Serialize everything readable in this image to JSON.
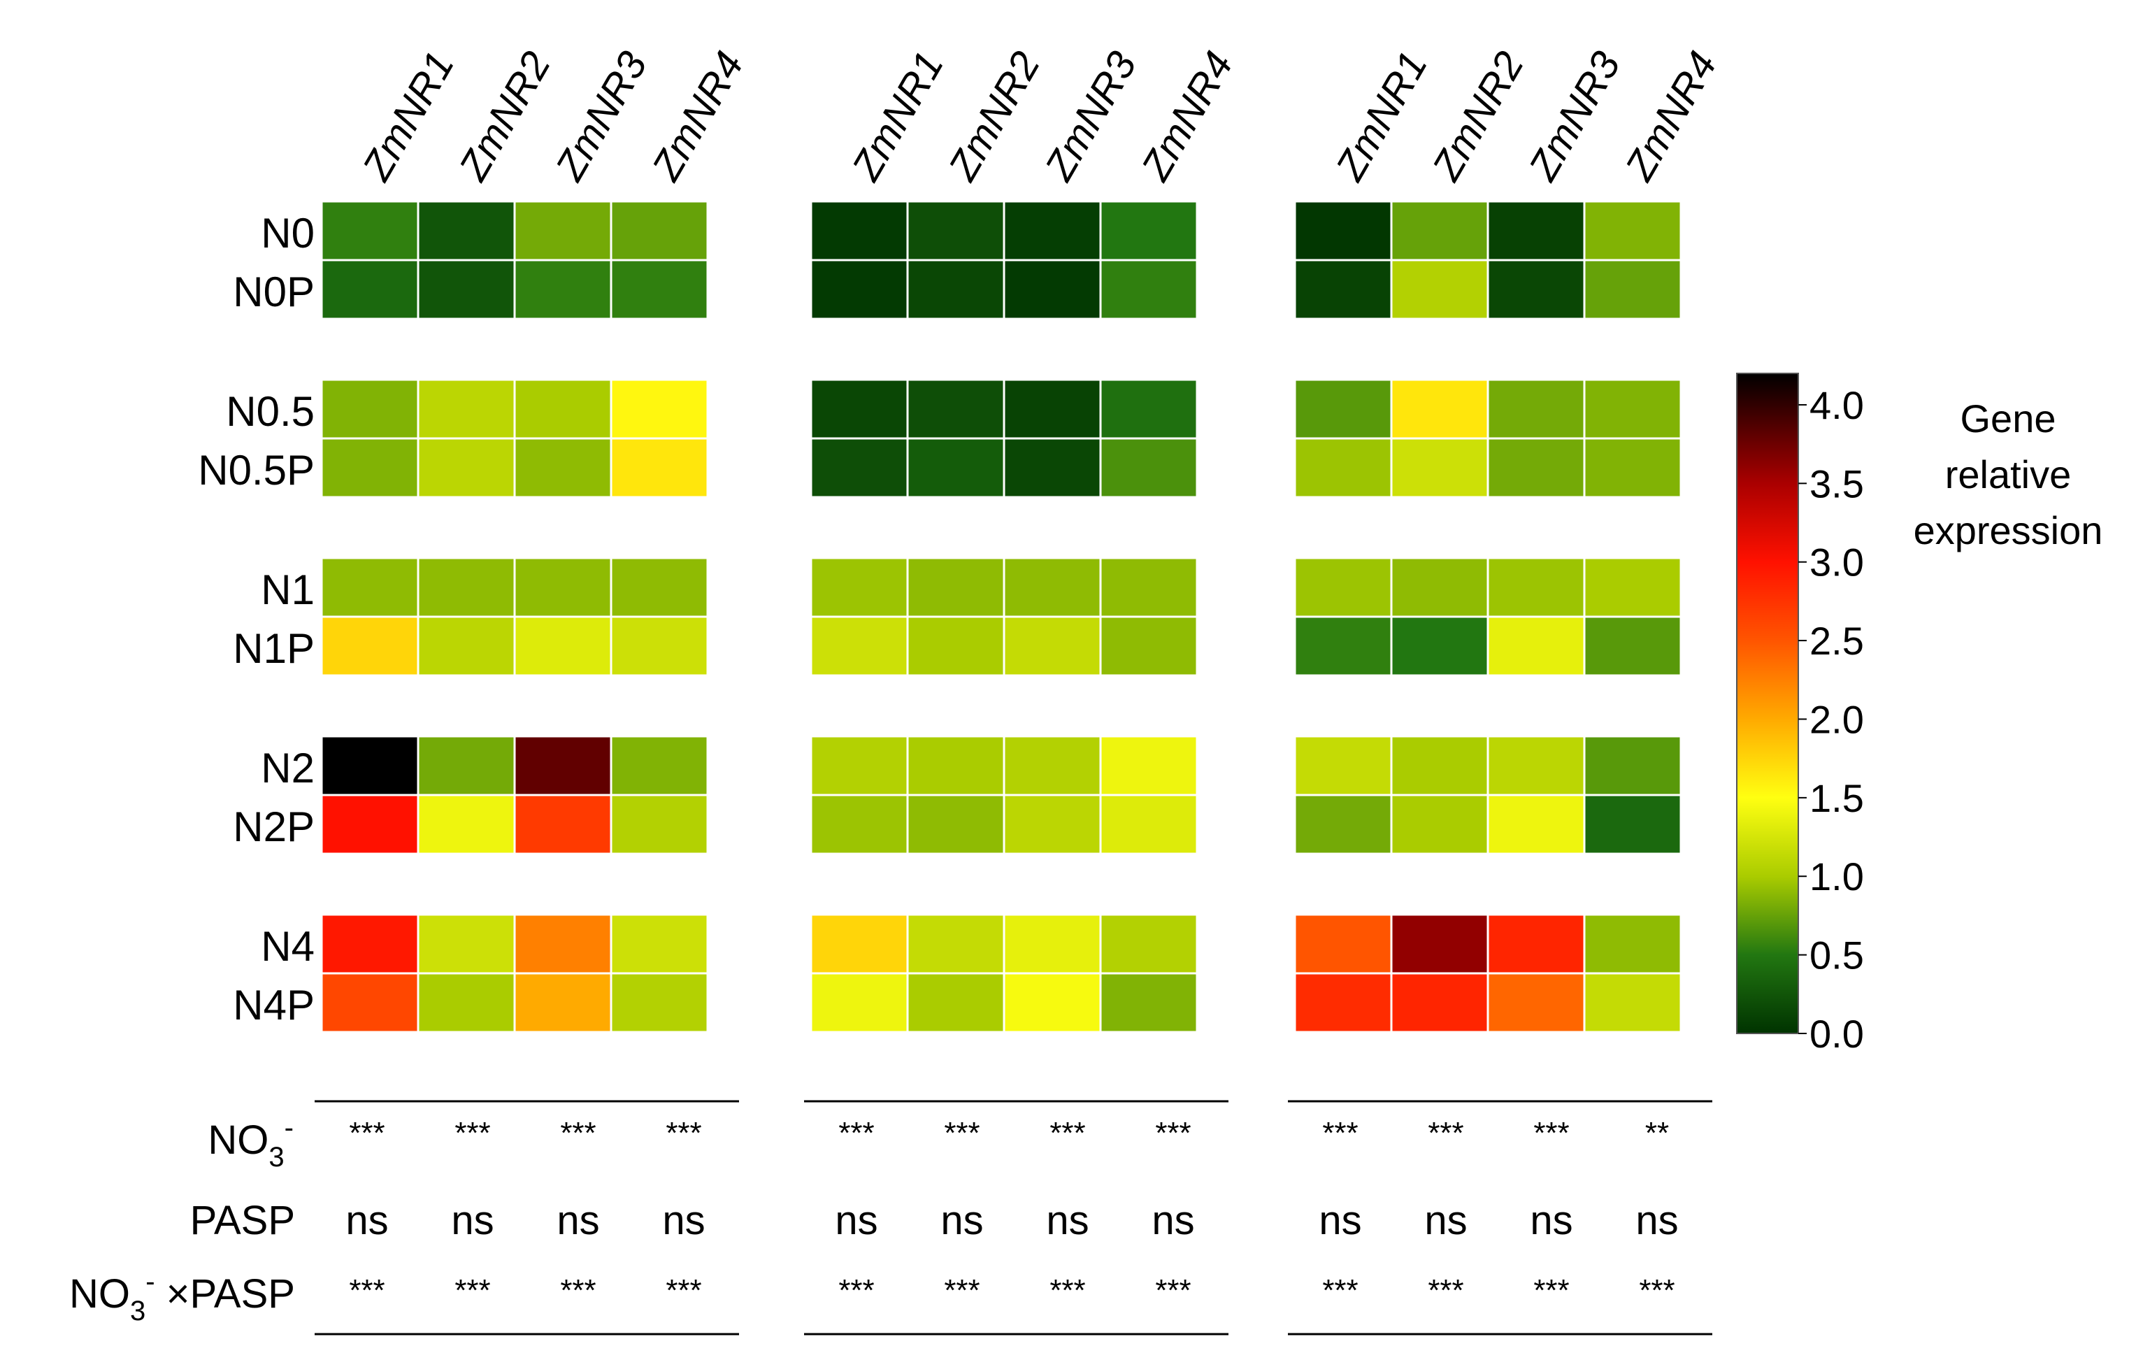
{
  "chart_data": {
    "type": "heatmap",
    "title": "",
    "panels": [
      {
        "columns": [
          "ZmNR1",
          "ZmNR2",
          "ZmNR3",
          "ZmNR4"
        ],
        "rows": [
          "N0",
          "N0P",
          "N0.5",
          "N0.5P",
          "N1",
          "N1P",
          "N2",
          "N2P",
          "N4",
          "N4P"
        ],
        "values": [
          [
            0.55,
            0.25,
            0.8,
            0.75
          ],
          [
            0.4,
            0.25,
            0.55,
            0.55
          ],
          [
            0.85,
            1.1,
            1.0,
            1.55
          ],
          [
            0.85,
            1.1,
            0.9,
            1.65
          ],
          [
            0.9,
            0.9,
            0.9,
            0.9
          ],
          [
            1.75,
            1.1,
            1.3,
            1.2
          ],
          [
            4.2,
            0.8,
            3.8,
            0.85
          ],
          [
            3.0,
            1.4,
            2.7,
            1.05
          ],
          [
            2.95,
            1.2,
            2.25,
            1.2
          ],
          [
            2.6,
            1.0,
            2.0,
            1.05
          ]
        ],
        "stats": {
          "NO3": [
            "***",
            "***",
            "***",
            "***"
          ],
          "PASP": [
            "ns",
            "ns",
            "ns",
            "ns"
          ],
          "NO3xPASP": [
            "***",
            "***",
            "***",
            "***"
          ]
        }
      },
      {
        "columns": [
          "ZmNR1",
          "ZmNR2",
          "ZmNR3",
          "ZmNR4"
        ],
        "rows": [
          "N0",
          "N0P",
          "N0.5",
          "N0.5P",
          "N1",
          "N1P",
          "N2",
          "N2P",
          "N4",
          "N4P"
        ],
        "values": [
          [
            0.05,
            0.2,
            0.08,
            0.5
          ],
          [
            0.05,
            0.15,
            0.05,
            0.55
          ],
          [
            0.15,
            0.2,
            0.12,
            0.45
          ],
          [
            0.2,
            0.3,
            0.15,
            0.65
          ],
          [
            0.95,
            0.9,
            0.9,
            0.9
          ],
          [
            1.2,
            1.0,
            1.15,
            0.9
          ],
          [
            1.05,
            1.0,
            1.05,
            1.4
          ],
          [
            0.95,
            0.9,
            1.1,
            1.3
          ],
          [
            1.75,
            1.15,
            1.35,
            1.05
          ],
          [
            1.4,
            1.0,
            1.45,
            0.85
          ]
        ],
        "stats": {
          "NO3": [
            "***",
            "***",
            "***",
            "***"
          ],
          "PASP": [
            "ns",
            "ns",
            "ns",
            "ns"
          ],
          "NO3xPASP": [
            "***",
            "***",
            "***",
            "***"
          ]
        }
      },
      {
        "columns": [
          "ZmNR1",
          "ZmNR2",
          "ZmNR3",
          "ZmNR4"
        ],
        "rows": [
          "N0",
          "N0P",
          "N0.5",
          "N0.5P",
          "N1",
          "N1P",
          "N2",
          "N2P",
          "N4",
          "N4P"
        ],
        "values": [
          [
            0.03,
            0.75,
            0.1,
            0.85
          ],
          [
            0.12,
            1.05,
            0.15,
            0.75
          ],
          [
            0.7,
            1.65,
            0.8,
            0.85
          ],
          [
            0.95,
            1.2,
            0.8,
            0.85
          ],
          [
            0.95,
            0.9,
            0.95,
            1.0
          ],
          [
            0.55,
            0.5,
            1.35,
            0.7
          ],
          [
            1.15,
            1.0,
            1.1,
            0.7
          ],
          [
            0.8,
            1.0,
            1.4,
            0.4
          ],
          [
            2.5,
            3.6,
            2.85,
            0.9
          ],
          [
            2.8,
            2.85,
            2.4,
            1.15
          ]
        ],
        "stats": {
          "NO3": [
            "***",
            "***",
            "***",
            "**"
          ],
          "PASP": [
            "ns",
            "ns",
            "ns",
            "ns"
          ],
          "NO3xPASP": [
            "***",
            "***",
            "***",
            "***"
          ]
        }
      }
    ],
    "stat_labels": {
      "NO3": "NO",
      "NO3_sub": "3",
      "NO3_sup": "-",
      "PASP": "PASP",
      "NO3xPASP_pre": "NO",
      "NO3xPASP_sub": "3",
      "NO3xPASP_sup": "-",
      "NO3xPASP_post": " ×PASP"
    },
    "colorbar": {
      "title_lines": [
        "Gene",
        "relative",
        "expression"
      ],
      "range": [
        0.0,
        4.2
      ],
      "ticks": [
        4.0,
        3.5,
        3.0,
        2.5,
        2.0,
        1.5,
        1.0,
        0.5,
        0.0
      ],
      "tick_labels": [
        "4.0",
        "3.5",
        "3.0",
        "2.5",
        "2.0",
        "1.5",
        "1.0",
        "0.5",
        "0.0"
      ]
    },
    "color_stops": [
      {
        "v": 0.0,
        "c": "#003300"
      },
      {
        "v": 0.5,
        "c": "#227711"
      },
      {
        "v": 1.0,
        "c": "#aacc00"
      },
      {
        "v": 1.5,
        "c": "#ffff11"
      },
      {
        "v": 2.0,
        "c": "#ffaa00"
      },
      {
        "v": 2.5,
        "c": "#ff5500"
      },
      {
        "v": 3.0,
        "c": "#ff1100"
      },
      {
        "v": 3.5,
        "c": "#aa0000"
      },
      {
        "v": 4.2,
        "c": "#000000"
      }
    ]
  }
}
